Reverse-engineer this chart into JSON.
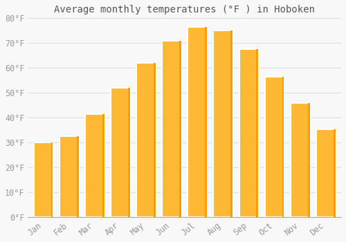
{
  "title": "Average monthly temperatures (°F ) in Hoboken",
  "months": [
    "Jan",
    "Feb",
    "Mar",
    "Apr",
    "May",
    "Jun",
    "Jul",
    "Aug",
    "Sep",
    "Oct",
    "Nov",
    "Dec"
  ],
  "temperatures": [
    30,
    32.5,
    41.5,
    52,
    62,
    71,
    76.5,
    75,
    67.5,
    56.5,
    46,
    35.5
  ],
  "bar_color_light": "#FFB833",
  "bar_color_dark": "#F5A000",
  "bar_edge_color": "#E09000",
  "background_color": "#F8F8F8",
  "grid_color": "#DDDDDD",
  "ylim": [
    0,
    80
  ],
  "yticks": [
    0,
    10,
    20,
    30,
    40,
    50,
    60,
    70,
    80
  ],
  "ylabel_suffix": "°F",
  "title_fontsize": 10,
  "tick_fontsize": 8.5,
  "font_family": "monospace",
  "tick_color": "#999999",
  "title_color": "#555555"
}
